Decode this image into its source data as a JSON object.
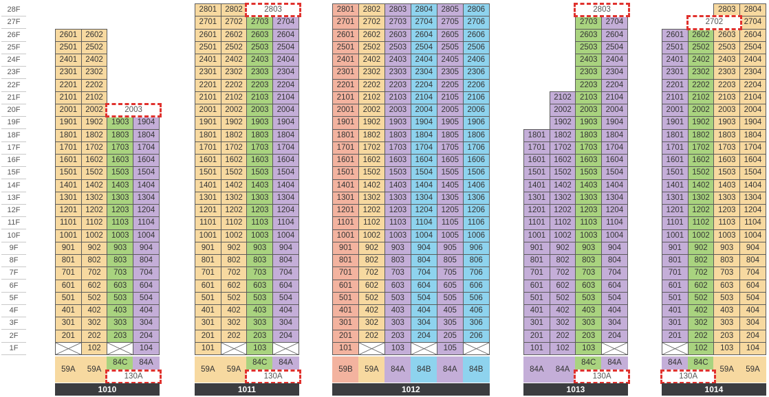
{
  "colors": {
    "orange": "#f7d9a0",
    "green": "#a9d37f",
    "purple": "#c4aed8",
    "blue": "#8ed3ee",
    "salmon": "#f3b39f",
    "highlight": "#e0312d",
    "label_bar": "#3c3d40"
  },
  "floors": [
    "28F",
    "27F",
    "26F",
    "25F",
    "24F",
    "23F",
    "22F",
    "21F",
    "20F",
    "19F",
    "18F",
    "17F",
    "16F",
    "15F",
    "14F",
    "13F",
    "12F",
    "11F",
    "10F",
    "9F",
    "8F",
    "7F",
    "6F",
    "5F",
    "4F",
    "3F",
    "2F",
    "1F"
  ],
  "buildings": [
    {
      "name": "1010",
      "lines": [
        {
          "no": "01",
          "color": "orange",
          "top": 26,
          "type": "59A"
        },
        {
          "no": "02",
          "color": "orange",
          "top": 26,
          "type": "59A"
        },
        {
          "no": "03",
          "color": "green",
          "top": 19,
          "type": "84C"
        },
        {
          "no": "04",
          "color": "purple",
          "top": 19,
          "type": "84A"
        }
      ],
      "empty_units": [
        "101",
        "103"
      ],
      "highlights": [
        "2003",
        "130A"
      ]
    },
    {
      "name": "1011",
      "lines": [
        {
          "no": "01",
          "color": "orange",
          "top": 28,
          "type": "59A"
        },
        {
          "no": "02",
          "color": "orange",
          "top": 28,
          "type": "59A"
        },
        {
          "no": "03",
          "color": "green",
          "top": 27,
          "type": "84C"
        },
        {
          "no": "04",
          "color": "purple",
          "top": 27,
          "type": "84A"
        }
      ],
      "empty_units": [
        "102",
        "104"
      ],
      "highlights": [
        "2803",
        "130A"
      ]
    },
    {
      "name": "1012",
      "lines": [
        {
          "no": "01",
          "color": "salmon",
          "top": 28,
          "type": "59B"
        },
        {
          "no": "02",
          "color": "orange",
          "top": 28,
          "type": "59A"
        },
        {
          "no": "03",
          "color": "purple",
          "top": 28,
          "type": "84A"
        },
        {
          "no": "04",
          "color": "blue",
          "top": 28,
          "type": "84B"
        },
        {
          "no": "05",
          "color": "purple",
          "top": 28,
          "type": "84A"
        },
        {
          "no": "06",
          "color": "blue",
          "top": 28,
          "type": "84B"
        }
      ],
      "empty_units": [
        "102",
        "104",
        "106"
      ],
      "highlights": []
    },
    {
      "name": "1013",
      "lines": [
        {
          "no": "01",
          "color": "purple",
          "top": 18,
          "type": "84A"
        },
        {
          "no": "02",
          "color": "purple",
          "top": 21,
          "type": "84A"
        },
        {
          "no": "03",
          "color": "green",
          "top": 27,
          "type": "84C"
        },
        {
          "no": "04",
          "color": "purple",
          "top": 27,
          "type": "84A"
        }
      ],
      "empty_units": [
        "104"
      ],
      "highlights": [
        "2803",
        "130A"
      ]
    },
    {
      "name": "1014",
      "lines": [
        {
          "no": "01",
          "color": "purple",
          "top": 26,
          "type": "84A"
        },
        {
          "no": "02",
          "color": "green",
          "top": 26,
          "type": "84C"
        },
        {
          "no": "03",
          "color": "orange",
          "top": 28,
          "type": "59A"
        },
        {
          "no": "04",
          "color": "orange",
          "top": 28,
          "type": "59A"
        }
      ],
      "empty_units": [
        "101"
      ],
      "highlights": [
        "2702",
        "130A"
      ]
    }
  ]
}
